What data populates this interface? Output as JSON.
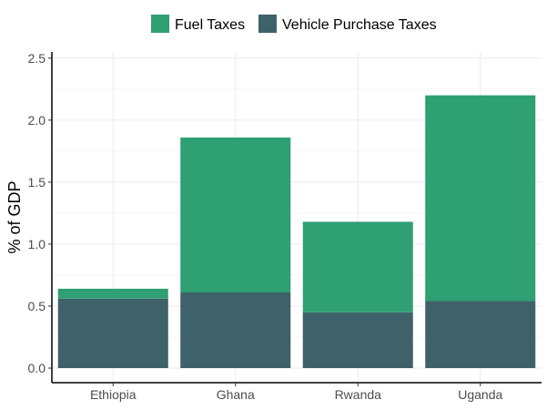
{
  "chart_data": {
    "type": "bar",
    "stacked": true,
    "categories": [
      "Ethiopia",
      "Ghana",
      "Rwanda",
      "Uganda"
    ],
    "series": [
      {
        "name": "Vehicle Purchase Taxes",
        "color": "#3f6169",
        "values": [
          0.56,
          0.61,
          0.45,
          0.54
        ]
      },
      {
        "name": "Fuel Taxes",
        "color": "#2f9f74",
        "values": [
          0.08,
          1.25,
          0.73,
          1.66
        ]
      }
    ],
    "legend_order": [
      "Fuel Taxes",
      "Vehicle Purchase Taxes"
    ],
    "legend_placement": "top",
    "title": "",
    "xlabel": "",
    "ylabel": "% of GDP",
    "ylim": [
      0,
      2.55
    ],
    "yticks": [
      0.0,
      0.5,
      1.0,
      1.5,
      2.0,
      2.5
    ],
    "ytick_labels": [
      "0.0",
      "0.5",
      "1.0",
      "1.5",
      "2.0",
      "2.5"
    ],
    "grid": true
  }
}
